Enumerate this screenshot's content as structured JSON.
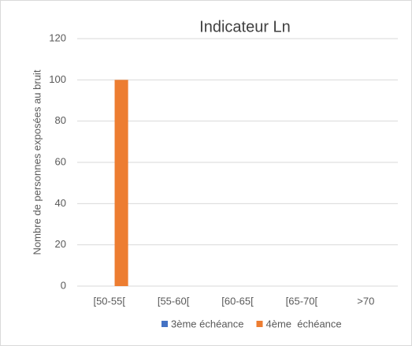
{
  "chart_data": {
    "type": "bar",
    "title": "Indicateur Ln",
    "y_label": "Nombre de personnes exposées au bruit",
    "categories": [
      "[50-55[",
      "[55-60[",
      "[60-65[",
      "[65-70[",
      ">70"
    ],
    "series": [
      {
        "name": "3ème échéance",
        "color": "#4472c4",
        "values": [
          0,
          0,
          0,
          0,
          0
        ]
      },
      {
        "name": "4ème  échéance",
        "color": "#ed7d31",
        "values": [
          100,
          0,
          0,
          0,
          0
        ]
      }
    ],
    "ylim": [
      0,
      120
    ],
    "yticks": [
      0,
      20,
      40,
      60,
      80,
      100,
      120
    ],
    "grid": true,
    "legend": "bottom"
  }
}
